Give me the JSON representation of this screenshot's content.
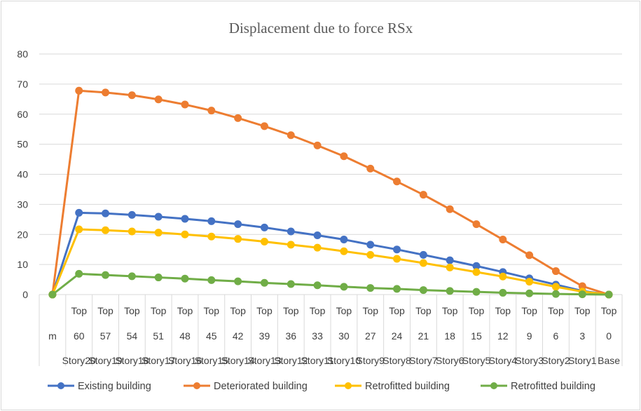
{
  "chart_data": {
    "type": "line",
    "title": "Displacement due to force RSx",
    "xlabel": "",
    "ylabel": "",
    "ylim": [
      0,
      80
    ],
    "yticks": [
      0,
      10,
      20,
      30,
      40,
      50,
      60,
      70,
      80
    ],
    "grid": true,
    "legend_position": "bottom",
    "categories": [
      {
        "row1": "",
        "row2": "m",
        "row3": ""
      },
      {
        "row1": "Top",
        "row2": "60",
        "row3": "Story20"
      },
      {
        "row1": "Top",
        "row2": "57",
        "row3": "Story19"
      },
      {
        "row1": "Top",
        "row2": "54",
        "row3": "Story18"
      },
      {
        "row1": "Top",
        "row2": "51",
        "row3": "Story17"
      },
      {
        "row1": "Top",
        "row2": "48",
        "row3": "Story16"
      },
      {
        "row1": "Top",
        "row2": "45",
        "row3": "Story15"
      },
      {
        "row1": "Top",
        "row2": "42",
        "row3": "Story14"
      },
      {
        "row1": "Top",
        "row2": "39",
        "row3": "Story13"
      },
      {
        "row1": "Top",
        "row2": "36",
        "row3": "Story12"
      },
      {
        "row1": "Top",
        "row2": "33",
        "row3": "Story11"
      },
      {
        "row1": "Top",
        "row2": "30",
        "row3": "Story10"
      },
      {
        "row1": "Top",
        "row2": "27",
        "row3": "Story9"
      },
      {
        "row1": "Top",
        "row2": "24",
        "row3": "Story8"
      },
      {
        "row1": "Top",
        "row2": "21",
        "row3": "Story7"
      },
      {
        "row1": "Top",
        "row2": "18",
        "row3": "Story6"
      },
      {
        "row1": "Top",
        "row2": "15",
        "row3": "Story5"
      },
      {
        "row1": "Top",
        "row2": "12",
        "row3": "Story4"
      },
      {
        "row1": "Top",
        "row2": "9",
        "row3": "Story3"
      },
      {
        "row1": "Top",
        "row2": "6",
        "row3": "Story2"
      },
      {
        "row1": "Top",
        "row2": "3",
        "row3": "Story1"
      },
      {
        "row1": "Top",
        "row2": "0",
        "row3": "Base"
      }
    ],
    "series": [
      {
        "name": "Existing building",
        "color": "#4472C4",
        "values": [
          0,
          27.2,
          27.0,
          26.5,
          25.9,
          25.2,
          24.4,
          23.4,
          22.3,
          21.0,
          19.7,
          18.3,
          16.6,
          15.0,
          13.2,
          11.4,
          9.5,
          7.5,
          5.4,
          3.3,
          1.2,
          0
        ]
      },
      {
        "name": "Deteriorated building",
        "color": "#ED7D31",
        "values": [
          0,
          67.8,
          67.2,
          66.3,
          64.9,
          63.2,
          61.2,
          58.7,
          56.0,
          53.0,
          49.6,
          46.0,
          41.9,
          37.6,
          33.2,
          28.4,
          23.4,
          18.3,
          13.1,
          7.8,
          2.8,
          0
        ]
      },
      {
        "name": "Retrofitted building",
        "color": "#FFC000",
        "values": [
          0,
          21.7,
          21.4,
          21.0,
          20.6,
          20.0,
          19.3,
          18.5,
          17.6,
          16.6,
          15.6,
          14.4,
          13.2,
          11.9,
          10.5,
          9.0,
          7.5,
          6.0,
          4.3,
          2.6,
          1.0,
          0
        ]
      },
      {
        "name": "Retrofitted building",
        "color": "#70AD47",
        "values": [
          0,
          6.9,
          6.5,
          6.1,
          5.7,
          5.3,
          4.8,
          4.4,
          3.9,
          3.5,
          3.1,
          2.6,
          2.2,
          1.9,
          1.5,
          1.2,
          0.9,
          0.6,
          0.4,
          0.2,
          0.1,
          0
        ]
      }
    ]
  }
}
